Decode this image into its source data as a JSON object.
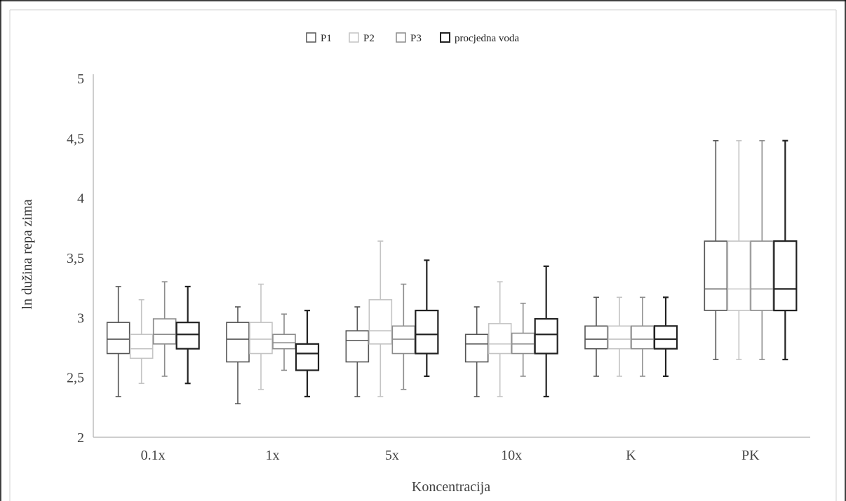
{
  "chart_data": {
    "type": "boxplot",
    "title": "",
    "xlabel": "Koncentracija",
    "ylabel": "ln dužina repa zima",
    "ylim": [
      2,
      5
    ],
    "y_ticks": [
      "2",
      "2,5",
      "3",
      "3,5",
      "4",
      "4,5",
      "5"
    ],
    "y_tick_values": [
      2,
      2.5,
      3,
      3.5,
      4,
      4.5,
      5
    ],
    "categories": [
      "0.1x",
      "1x",
      "5x",
      "10x",
      "K",
      "PK"
    ],
    "legend_position": "top",
    "series": [
      {
        "name": "P1",
        "color": "#555555",
        "boxes": [
          {
            "min": 2.34,
            "q1": 2.7,
            "median": 2.82,
            "q3": 2.96,
            "max": 3.26
          },
          {
            "min": 2.28,
            "q1": 2.63,
            "median": 2.82,
            "q3": 2.96,
            "max": 3.09
          },
          {
            "min": 2.34,
            "q1": 2.63,
            "median": 2.81,
            "q3": 2.89,
            "max": 3.09
          },
          {
            "min": 2.34,
            "q1": 2.63,
            "median": 2.78,
            "q3": 2.86,
            "max": 3.09
          },
          {
            "min": 2.51,
            "q1": 2.74,
            "median": 2.82,
            "q3": 2.93,
            "max": 3.17
          },
          {
            "min": 2.65,
            "q1": 3.06,
            "median": 3.24,
            "q3": 3.64,
            "max": 4.48
          }
        ]
      },
      {
        "name": "P2",
        "color": "#c4c4c4",
        "boxes": [
          {
            "min": 2.45,
            "q1": 2.66,
            "median": 2.74,
            "q3": 2.86,
            "max": 3.15
          },
          {
            "min": 2.4,
            "q1": 2.7,
            "median": 2.82,
            "q3": 2.96,
            "max": 3.28
          },
          {
            "min": 2.34,
            "q1": 2.78,
            "median": 2.89,
            "q3": 3.15,
            "max": 3.64
          },
          {
            "min": 2.34,
            "q1": 2.7,
            "median": 2.78,
            "q3": 2.95,
            "max": 3.3
          },
          {
            "min": 2.51,
            "q1": 2.74,
            "median": 2.82,
            "q3": 2.93,
            "max": 3.17
          },
          {
            "min": 2.65,
            "q1": 3.06,
            "median": 3.24,
            "q3": 3.64,
            "max": 4.48
          }
        ]
      },
      {
        "name": "P3",
        "color": "#8c8c8c",
        "boxes": [
          {
            "min": 2.51,
            "q1": 2.78,
            "median": 2.86,
            "q3": 2.99,
            "max": 3.3
          },
          {
            "min": 2.56,
            "q1": 2.74,
            "median": 2.79,
            "q3": 2.86,
            "max": 3.03
          },
          {
            "min": 2.4,
            "q1": 2.7,
            "median": 2.82,
            "q3": 2.93,
            "max": 3.28
          },
          {
            "min": 2.51,
            "q1": 2.7,
            "median": 2.78,
            "q3": 2.87,
            "max": 3.12
          },
          {
            "min": 2.51,
            "q1": 2.74,
            "median": 2.82,
            "q3": 2.93,
            "max": 3.17
          },
          {
            "min": 2.65,
            "q1": 3.06,
            "median": 3.24,
            "q3": 3.64,
            "max": 4.48
          }
        ]
      },
      {
        "name": "procjedna voda",
        "color": "#222222",
        "boxes": [
          {
            "min": 2.45,
            "q1": 2.74,
            "median": 2.86,
            "q3": 2.96,
            "max": 3.26
          },
          {
            "min": 2.34,
            "q1": 2.56,
            "median": 2.7,
            "q3": 2.78,
            "max": 3.06
          },
          {
            "min": 2.51,
            "q1": 2.7,
            "median": 2.86,
            "q3": 3.06,
            "max": 3.48
          },
          {
            "min": 2.34,
            "q1": 2.7,
            "median": 2.86,
            "q3": 2.99,
            "max": 3.43
          },
          {
            "min": 2.51,
            "q1": 2.74,
            "median": 2.82,
            "q3": 2.93,
            "max": 3.17
          },
          {
            "min": 2.65,
            "q1": 3.06,
            "median": 3.24,
            "q3": 3.64,
            "max": 4.48
          }
        ]
      }
    ]
  }
}
